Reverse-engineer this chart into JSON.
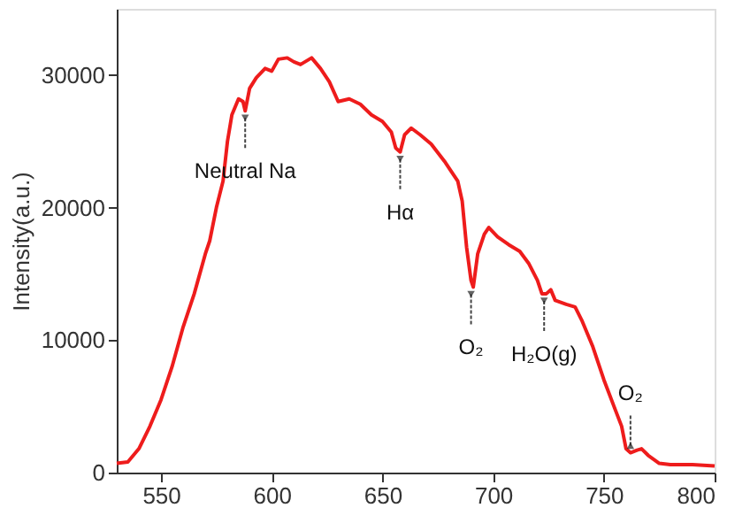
{
  "chart_data": {
    "type": "line",
    "ylabel": "Intensity(a.u.)",
    "xlim": [
      530,
      800
    ],
    "ylim": [
      0,
      35000
    ],
    "xticks": [
      550,
      600,
      650,
      700,
      750,
      800
    ],
    "yticks": [
      0,
      10000,
      20000,
      30000
    ],
    "grid": false,
    "marker": "none",
    "line_style": "solid",
    "x": [
      530,
      535,
      540,
      545,
      550,
      555,
      560,
      565,
      570,
      572,
      575,
      578,
      580,
      582,
      585,
      587,
      588,
      590,
      593,
      597,
      600,
      603,
      607,
      610,
      613,
      618,
      622,
      626,
      630,
      635,
      640,
      645,
      650,
      654,
      656,
      658,
      660,
      663,
      667,
      672,
      678,
      684,
      686,
      688,
      690,
      691,
      693,
      696,
      698,
      702,
      707,
      712,
      716,
      720,
      722,
      724,
      726,
      728,
      733,
      737,
      740,
      745,
      750,
      755,
      758,
      760,
      762,
      765,
      767,
      770,
      775,
      780,
      790,
      800
    ],
    "series": [
      {
        "color": "#ee1c1c",
        "values": [
          700,
          800,
          1800,
          3500,
          5500,
          8000,
          11000,
          13500,
          16500,
          17500,
          20000,
          22000,
          25000,
          27000,
          28200,
          28000,
          27300,
          29000,
          29800,
          30500,
          30300,
          31200,
          31300,
          31000,
          30800,
          31300,
          30500,
          29500,
          28000,
          28200,
          27800,
          27000,
          26500,
          25700,
          24500,
          24200,
          25500,
          26000,
          25500,
          24800,
          23500,
          22000,
          20500,
          17000,
          14500,
          14000,
          16500,
          18000,
          18500,
          17800,
          17200,
          16700,
          15800,
          14500,
          13500,
          13500,
          13800,
          13000,
          12700,
          12500,
          11500,
          9500,
          7000,
          4800,
          3500,
          1800,
          1500,
          1700,
          1800,
          1300,
          700,
          600,
          600,
          500
        ]
      }
    ],
    "annotations": [
      {
        "text": "Neutral Na",
        "x": 588,
        "y": 27300
      },
      {
        "text": "Hα",
        "x": 658,
        "y": 24200
      },
      {
        "text": "O₂",
        "x": 690,
        "y": 14000
      },
      {
        "text": "H₂O(g)",
        "x": 723,
        "y": 13500
      },
      {
        "text": "O₂",
        "x": 762,
        "y": 1500
      }
    ]
  }
}
